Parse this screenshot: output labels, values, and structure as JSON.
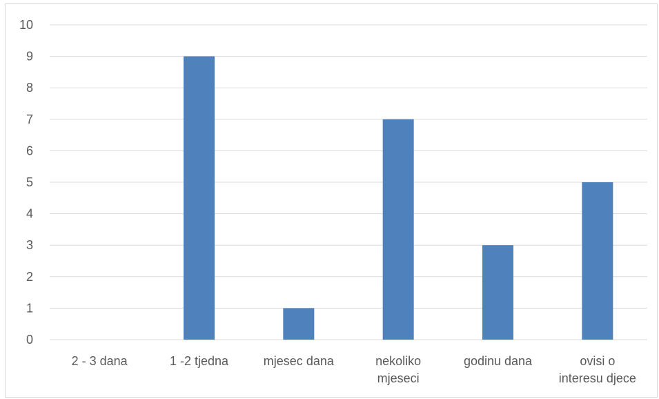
{
  "chart_data": {
    "type": "bar",
    "categories": [
      [
        "2 - 3 dana"
      ],
      [
        "1 -2 tjedna"
      ],
      [
        "mjesec dana"
      ],
      [
        "nekoliko",
        "mjeseci"
      ],
      [
        "godinu dana"
      ],
      [
        "ovisi o",
        "interesu djece"
      ]
    ],
    "values": [
      0,
      9,
      1,
      7,
      3,
      5
    ],
    "ylim": [
      0,
      10
    ],
    "yticks": [
      "0",
      "1",
      "2",
      "3",
      "4",
      "5",
      "6",
      "7",
      "8",
      "9",
      "10"
    ],
    "title": "",
    "xlabel": "",
    "ylabel": "",
    "grid": true,
    "legend": "none",
    "bar_color": "#4f81bd",
    "grid_color": "#d9d9d9"
  }
}
